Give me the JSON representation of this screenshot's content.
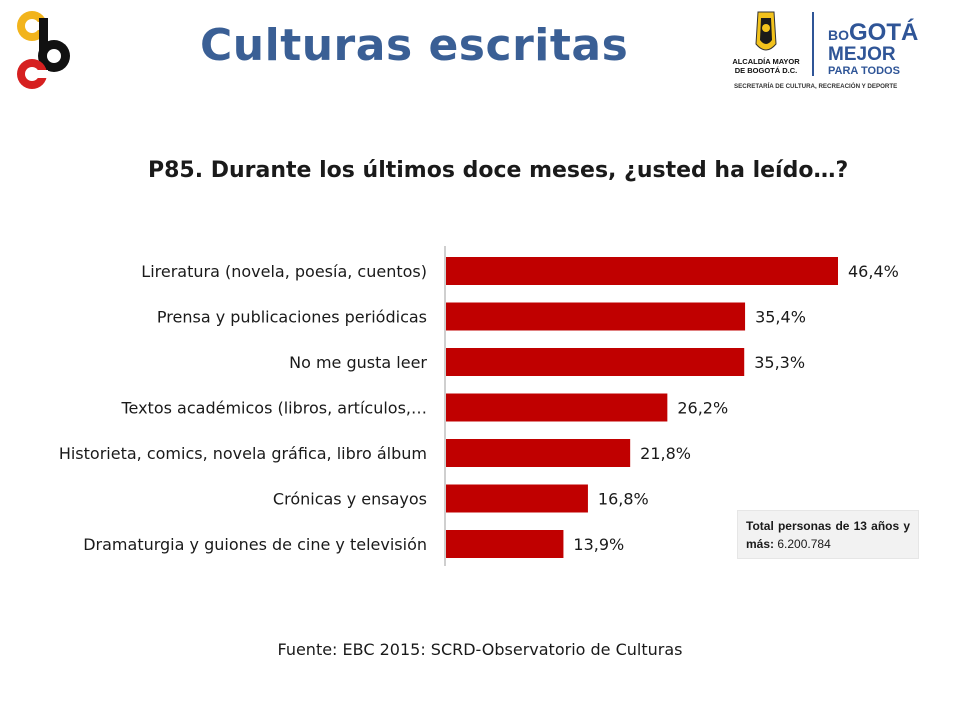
{
  "header": {
    "title": "Culturas escritas"
  },
  "logo_right": {
    "line1": "ALCALDÍA MAYOR",
    "line2": "DE BOGOTÁ D.C.",
    "brand_top_small": "BO",
    "brand_top_big": "GOTÁ",
    "brand_mid": "MEJOR",
    "brand_bottom": "PARA TODOS",
    "subtitle": "SECRETARÍA DE CULTURA, RECREACIÓN Y DEPORTE"
  },
  "chart_data": {
    "type": "bar",
    "orientation": "horizontal",
    "title": "P85. Durante los últimos doce meses, ¿usted ha leído…?",
    "categories": [
      "Lireratura (novela, poesía, cuentos)",
      "Prensa y publicaciones periódicas",
      "No me gusta leer",
      "Textos académicos (libros, artículos,…",
      "Historieta, comics, novela gráfica, libro álbum",
      "Crónicas y ensayos",
      "Dramaturgia y guiones de cine y televisión"
    ],
    "values": [
      46.4,
      35.4,
      35.3,
      26.2,
      21.8,
      16.8,
      13.9
    ],
    "value_labels": [
      "46,4%",
      "35,4%",
      "35,3%",
      "26,2%",
      "21,8%",
      "16,8%",
      "13,9%"
    ],
    "xlim": [
      0,
      50
    ],
    "grid": false,
    "bar_color": "#c00000"
  },
  "note": {
    "bold_text": "Total personas de 13 años y más:",
    "value": "6.200.784"
  },
  "footer": {
    "source": "Fuente: EBC 2015: SCRD-Observatorio de Culturas"
  },
  "colors": {
    "title_blue": "#3a5f95",
    "bar_red": "#c00000",
    "logo_yellow": "#f2b41c",
    "logo_red": "#d62020",
    "brand_blue": "#2f5597"
  }
}
